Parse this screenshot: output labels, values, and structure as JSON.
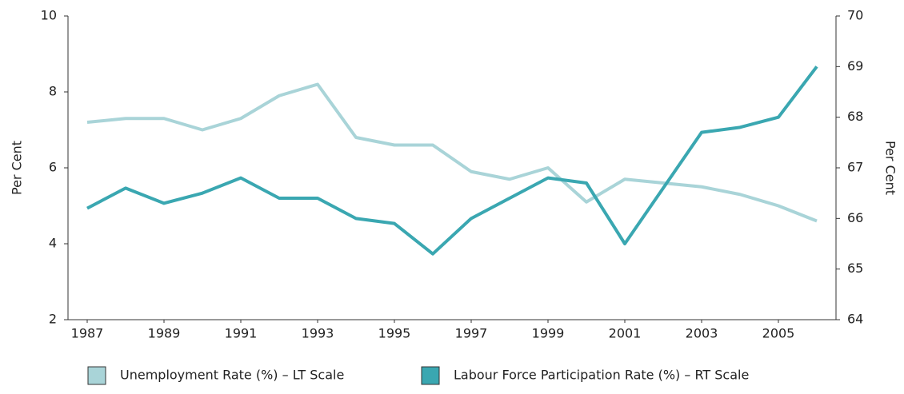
{
  "chart_data": {
    "type": "line",
    "x": [
      1987,
      1988,
      1989,
      1990,
      1991,
      1992,
      1993,
      1994,
      1995,
      1996,
      1997,
      1998,
      1999,
      2000,
      2001,
      2002,
      2003,
      2004,
      2005,
      2006
    ],
    "xlim": [
      1986.5,
      2006.5
    ],
    "xticks": [
      1987,
      1989,
      1991,
      1993,
      1995,
      1997,
      1999,
      2001,
      2003,
      2005
    ],
    "ylim": [
      2,
      10
    ],
    "yticks": [
      2,
      4,
      6,
      8,
      10
    ],
    "ylabel": "Per Cent",
    "y2lim": [
      64,
      70
    ],
    "y2ticks": [
      64,
      65,
      66,
      67,
      68,
      69,
      70
    ],
    "y2label": "Per Cent",
    "grid": false,
    "series": [
      {
        "name": "Unemployment Rate (%) – LT Scale",
        "color": "#a9d4d8",
        "values": [
          7.2,
          7.3,
          7.3,
          7.0,
          7.3,
          7.9,
          8.2,
          6.8,
          6.6,
          6.6,
          5.9,
          5.7,
          6.0,
          5.1,
          5.7,
          5.6,
          5.5,
          5.3,
          5.0,
          4.6
        ]
      },
      {
        "name": "Labour Force Participation Rate (%) – RT Scale",
        "color": "#3aa7b1",
        "axis": "y2",
        "values": [
          66.2,
          66.6,
          66.3,
          66.5,
          66.8,
          66.4,
          66.4,
          66.0,
          65.9,
          65.3,
          66.0,
          66.4,
          66.8,
          66.7,
          65.5,
          66.6,
          67.7,
          67.8,
          68.0,
          69.0
        ]
      }
    ]
  }
}
